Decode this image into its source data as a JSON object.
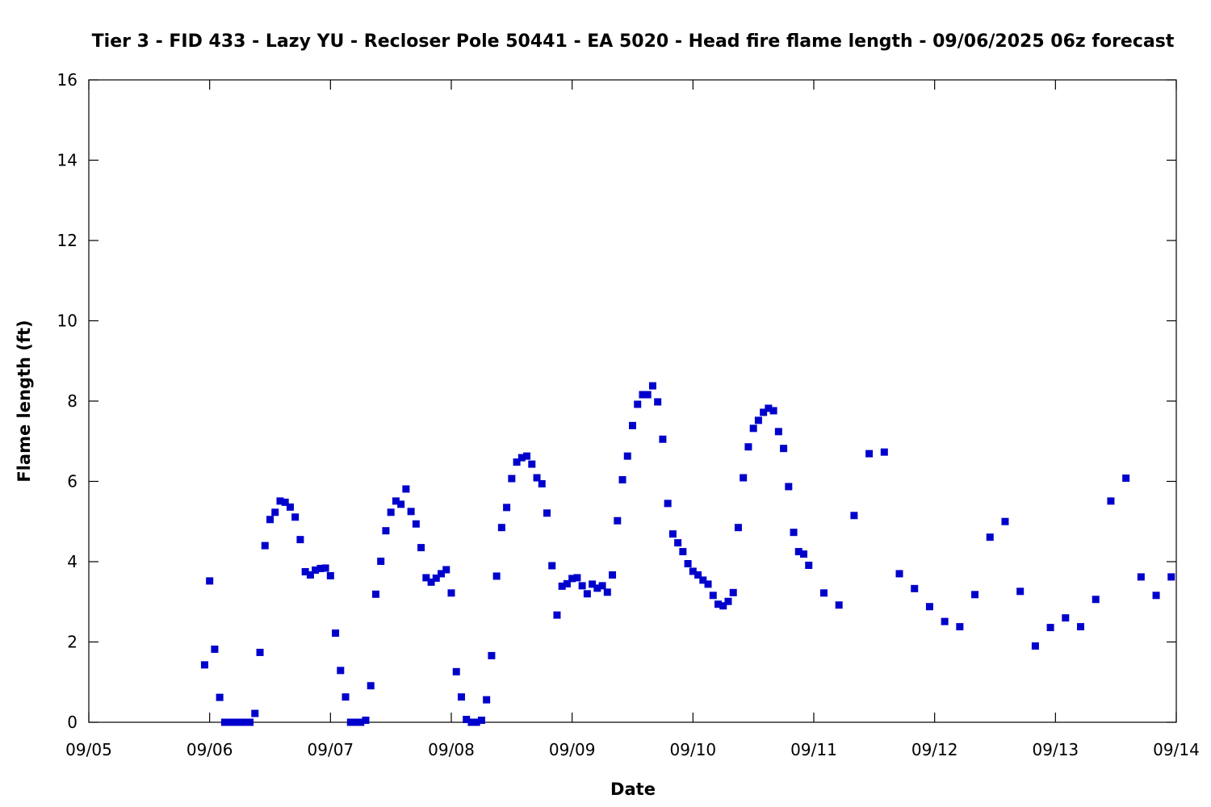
{
  "chart_data": {
    "type": "scatter",
    "title": "Tier 3 - FID 433 - Lazy YU - Recloser Pole 50441 - EA 5020 - Head fire flame length - 09/06/2025 06z forecast",
    "xlabel": "Date",
    "ylabel": "Flame length (ft)",
    "xlim": [
      "2025-09-05T00:00",
      "2025-09-14T00:00"
    ],
    "ylim": [
      0,
      16
    ],
    "grid": false,
    "legend": "none",
    "x_ticks": [
      "09/05",
      "09/06",
      "09/07",
      "09/08",
      "09/09",
      "09/10",
      "09/11",
      "09/12",
      "09/13",
      "09/14"
    ],
    "y_ticks": [
      "0",
      "2",
      "4",
      "6",
      "8",
      "10",
      "12",
      "14",
      "16"
    ],
    "marker_color": "#0000cc",
    "series": [
      {
        "points": [
          [
            "2025-09-05T23:00",
            1.43
          ],
          [
            "2025-09-06T00:00",
            3.52
          ],
          [
            "2025-09-06T01:00",
            1.82
          ],
          [
            "2025-09-06T02:00",
            0.62
          ],
          [
            "2025-09-06T03:00",
            0.0
          ],
          [
            "2025-09-06T04:00",
            0.0
          ],
          [
            "2025-09-06T05:00",
            0.0
          ],
          [
            "2025-09-06T06:00",
            0.0
          ],
          [
            "2025-09-06T07:00",
            0.0
          ],
          [
            "2025-09-06T08:00",
            0.0
          ],
          [
            "2025-09-06T09:00",
            0.22
          ],
          [
            "2025-09-06T10:00",
            1.74
          ],
          [
            "2025-09-06T11:00",
            4.4
          ],
          [
            "2025-09-06T12:00",
            5.05
          ],
          [
            "2025-09-06T13:00",
            5.23
          ],
          [
            "2025-09-06T14:00",
            5.51
          ],
          [
            "2025-09-06T15:00",
            5.48
          ],
          [
            "2025-09-06T16:00",
            5.36
          ],
          [
            "2025-09-06T17:00",
            5.11
          ],
          [
            "2025-09-06T18:00",
            4.55
          ],
          [
            "2025-09-06T19:00",
            3.75
          ],
          [
            "2025-09-06T20:00",
            3.67
          ],
          [
            "2025-09-06T21:00",
            3.79
          ],
          [
            "2025-09-06T22:00",
            3.83
          ],
          [
            "2025-09-06T23:00",
            3.84
          ],
          [
            "2025-09-07T00:00",
            3.65
          ],
          [
            "2025-09-07T01:00",
            2.22
          ],
          [
            "2025-09-07T02:00",
            1.29
          ],
          [
            "2025-09-07T03:00",
            0.63
          ],
          [
            "2025-09-07T04:00",
            0.0
          ],
          [
            "2025-09-07T05:00",
            0.0
          ],
          [
            "2025-09-07T06:00",
            0.0
          ],
          [
            "2025-09-07T07:00",
            0.05
          ],
          [
            "2025-09-07T08:00",
            0.91
          ],
          [
            "2025-09-07T09:00",
            3.19
          ],
          [
            "2025-09-07T10:00",
            4.01
          ],
          [
            "2025-09-07T11:00",
            4.77
          ],
          [
            "2025-09-07T12:00",
            5.23
          ],
          [
            "2025-09-07T13:00",
            5.51
          ],
          [
            "2025-09-07T14:00",
            5.43
          ],
          [
            "2025-09-07T15:00",
            5.81
          ],
          [
            "2025-09-07T16:00",
            5.25
          ],
          [
            "2025-09-07T17:00",
            4.94
          ],
          [
            "2025-09-07T18:00",
            4.35
          ],
          [
            "2025-09-07T19:00",
            3.6
          ],
          [
            "2025-09-07T20:00",
            3.49
          ],
          [
            "2025-09-07T21:00",
            3.59
          ],
          [
            "2025-09-07T22:00",
            3.7
          ],
          [
            "2025-09-07T23:00",
            3.8
          ],
          [
            "2025-09-08T00:00",
            3.22
          ],
          [
            "2025-09-08T01:00",
            1.26
          ],
          [
            "2025-09-08T02:00",
            0.63
          ],
          [
            "2025-09-08T03:00",
            0.07
          ],
          [
            "2025-09-08T04:00",
            0.0
          ],
          [
            "2025-09-08T05:00",
            0.0
          ],
          [
            "2025-09-08T06:00",
            0.05
          ],
          [
            "2025-09-08T07:00",
            0.56
          ],
          [
            "2025-09-08T08:00",
            1.66
          ],
          [
            "2025-09-08T09:00",
            3.64
          ],
          [
            "2025-09-08T10:00",
            4.85
          ],
          [
            "2025-09-08T11:00",
            5.35
          ],
          [
            "2025-09-08T12:00",
            6.07
          ],
          [
            "2025-09-08T13:00",
            6.48
          ],
          [
            "2025-09-08T14:00",
            6.59
          ],
          [
            "2025-09-08T15:00",
            6.63
          ],
          [
            "2025-09-08T16:00",
            6.43
          ],
          [
            "2025-09-08T17:00",
            6.09
          ],
          [
            "2025-09-08T18:00",
            5.94
          ],
          [
            "2025-09-08T19:00",
            5.21
          ],
          [
            "2025-09-08T20:00",
            3.9
          ],
          [
            "2025-09-08T21:00",
            2.67
          ],
          [
            "2025-09-08T22:00",
            3.39
          ],
          [
            "2025-09-08T23:00",
            3.45
          ],
          [
            "2025-09-09T00:00",
            3.58
          ],
          [
            "2025-09-09T01:00",
            3.6
          ],
          [
            "2025-09-09T02:00",
            3.4
          ],
          [
            "2025-09-09T03:00",
            3.2
          ],
          [
            "2025-09-09T04:00",
            3.44
          ],
          [
            "2025-09-09T05:00",
            3.34
          ],
          [
            "2025-09-09T06:00",
            3.4
          ],
          [
            "2025-09-09T07:00",
            3.24
          ],
          [
            "2025-09-09T08:00",
            3.67
          ],
          [
            "2025-09-09T09:00",
            5.02
          ],
          [
            "2025-09-09T10:00",
            6.04
          ],
          [
            "2025-09-09T11:00",
            6.63
          ],
          [
            "2025-09-09T12:00",
            7.39
          ],
          [
            "2025-09-09T13:00",
            7.92
          ],
          [
            "2025-09-09T14:00",
            8.16
          ],
          [
            "2025-09-09T15:00",
            8.16
          ],
          [
            "2025-09-09T16:00",
            8.38
          ],
          [
            "2025-09-09T17:00",
            7.98
          ],
          [
            "2025-09-09T18:00",
            7.05
          ],
          [
            "2025-09-09T19:00",
            5.45
          ],
          [
            "2025-09-09T20:00",
            4.69
          ],
          [
            "2025-09-09T21:00",
            4.47
          ],
          [
            "2025-09-09T22:00",
            4.25
          ],
          [
            "2025-09-09T23:00",
            3.95
          ],
          [
            "2025-09-10T00:00",
            3.76
          ],
          [
            "2025-09-10T01:00",
            3.67
          ],
          [
            "2025-09-10T02:00",
            3.54
          ],
          [
            "2025-09-10T03:00",
            3.44
          ],
          [
            "2025-09-10T04:00",
            3.16
          ],
          [
            "2025-09-10T05:00",
            2.94
          ],
          [
            "2025-09-10T06:00",
            2.9
          ],
          [
            "2025-09-10T07:00",
            3.01
          ],
          [
            "2025-09-10T08:00",
            3.23
          ],
          [
            "2025-09-10T09:00",
            4.85
          ],
          [
            "2025-09-10T10:00",
            6.09
          ],
          [
            "2025-09-10T11:00",
            6.86
          ],
          [
            "2025-09-10T12:00",
            7.32
          ],
          [
            "2025-09-10T13:00",
            7.52
          ],
          [
            "2025-09-10T14:00",
            7.72
          ],
          [
            "2025-09-10T15:00",
            7.82
          ],
          [
            "2025-09-10T16:00",
            7.76
          ],
          [
            "2025-09-10T17:00",
            7.24
          ],
          [
            "2025-09-10T18:00",
            6.82
          ],
          [
            "2025-09-10T19:00",
            5.87
          ],
          [
            "2025-09-10T20:00",
            4.73
          ],
          [
            "2025-09-10T21:00",
            4.25
          ],
          [
            "2025-09-10T22:00",
            4.19
          ],
          [
            "2025-09-10T23:00",
            3.91
          ],
          [
            "2025-09-11T02:00",
            3.22
          ],
          [
            "2025-09-11T05:00",
            2.92
          ],
          [
            "2025-09-11T08:00",
            5.15
          ],
          [
            "2025-09-11T11:00",
            6.69
          ],
          [
            "2025-09-11T14:00",
            6.73
          ],
          [
            "2025-09-11T17:00",
            3.7
          ],
          [
            "2025-09-11T20:00",
            3.33
          ],
          [
            "2025-09-11T23:00",
            2.88
          ],
          [
            "2025-09-12T02:00",
            2.51
          ],
          [
            "2025-09-12T05:00",
            2.38
          ],
          [
            "2025-09-12T08:00",
            3.18
          ],
          [
            "2025-09-12T11:00",
            4.61
          ],
          [
            "2025-09-12T14:00",
            5.0
          ],
          [
            "2025-09-12T17:00",
            3.26
          ],
          [
            "2025-09-12T20:00",
            1.9
          ],
          [
            "2025-09-12T23:00",
            2.36
          ],
          [
            "2025-09-13T02:00",
            2.6
          ],
          [
            "2025-09-13T05:00",
            2.38
          ],
          [
            "2025-09-13T08:00",
            3.06
          ],
          [
            "2025-09-13T11:00",
            5.51
          ],
          [
            "2025-09-13T14:00",
            6.08
          ],
          [
            "2025-09-13T17:00",
            3.62
          ],
          [
            "2025-09-13T20:00",
            3.16
          ],
          [
            "2025-09-13T23:00",
            3.62
          ]
        ]
      }
    ]
  }
}
